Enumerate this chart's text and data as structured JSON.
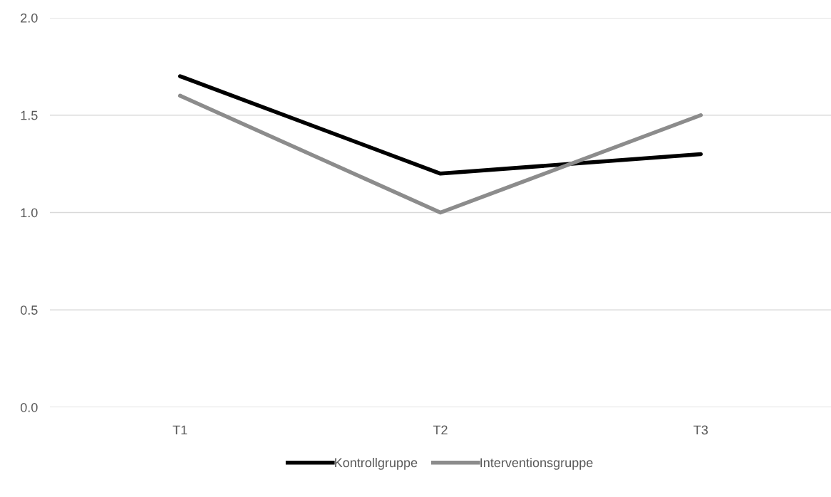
{
  "chart_data": {
    "type": "line",
    "categories": [
      "T1",
      "T2",
      "T3"
    ],
    "series": [
      {
        "name": "Kontrollgruppe",
        "color": "#000000",
        "values": [
          1.7,
          1.2,
          1.3
        ]
      },
      {
        "name": "Interventionsgruppe",
        "color": "#8c8c8c",
        "values": [
          1.6,
          1.0,
          1.5
        ]
      }
    ],
    "ylim": [
      0,
      2.0
    ],
    "yticks": [
      {
        "value": 0,
        "label": "0.0"
      },
      {
        "value": 0.5,
        "label": "0.5"
      },
      {
        "value": 1.0,
        "label": "1.0"
      },
      {
        "value": 1.5,
        "label": "1.5"
      },
      {
        "value": 2.0,
        "label": "2.0"
      }
    ],
    "grid": "y",
    "legend": "bottom",
    "marker": "none",
    "line_style": "solid"
  }
}
